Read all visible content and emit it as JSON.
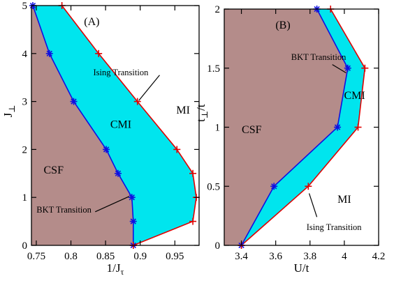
{
  "colors": {
    "superfluid_fill": "#b48c8a",
    "cmi_fill": "#00e5ee",
    "bkt_line": "#1010e0",
    "ising_line": "#e00000",
    "axes": "#000000"
  },
  "chart_data": [
    {
      "type": "line",
      "panel_label": "(A)",
      "xlabel": "1/J",
      "xlabel_subscript": "τ",
      "ylabel": "J",
      "ylabel_subscript": "⊥",
      "xlim": [
        0.743,
        0.985
      ],
      "ylim": [
        0,
        5
      ],
      "x_ticks": [
        0.75,
        0.8,
        0.85,
        0.9,
        0.95
      ],
      "x_tick_labels": [
        "0.75",
        "0.8",
        "0.85",
        "0.9",
        "0.95"
      ],
      "y_ticks": [
        0,
        1,
        2,
        3,
        4,
        5
      ],
      "y_tick_labels": [
        "0",
        "1",
        "2",
        "3",
        "4",
        "5"
      ],
      "series": [
        {
          "name": "BKT Transition",
          "marker": "asterisk",
          "color": "#1010e0",
          "points": [
            [
              0.89,
              0.0
            ],
            [
              0.89,
              0.5
            ],
            [
              0.888,
              1.0
            ],
            [
              0.868,
              1.5
            ],
            [
              0.851,
              2.0
            ],
            [
              0.804,
              3.0
            ],
            [
              0.769,
              4.0
            ],
            [
              0.745,
              5.0
            ]
          ]
        },
        {
          "name": "Ising Transition",
          "marker": "plus",
          "color": "#e00000",
          "points": [
            [
              0.89,
              0.0
            ],
            [
              0.976,
              0.5
            ],
            [
              0.981,
              1.0
            ],
            [
              0.976,
              1.5
            ],
            [
              0.953,
              2.0
            ],
            [
              0.896,
              3.0
            ],
            [
              0.84,
              4.0
            ],
            [
              0.787,
              5.0
            ]
          ]
        }
      ],
      "regions": [
        {
          "label": "CSF",
          "at": [
            0.775,
            1.5
          ]
        },
        {
          "label": "CMI",
          "at": [
            0.872,
            2.45
          ]
        },
        {
          "label": "MI",
          "at": [
            0.962,
            2.75
          ]
        }
      ],
      "annotations": [
        {
          "text": "Ising Transition",
          "text_at": [
            0.872,
            3.55
          ],
          "arrow_from": [
            0.928,
            3.55
          ],
          "arrow_to": [
            0.898,
            3.02
          ]
        },
        {
          "text": "BKT Transition",
          "text_at": [
            0.79,
            0.68
          ],
          "arrow_from": [
            0.835,
            0.7
          ],
          "arrow_to": [
            0.884,
            1.02
          ]
        }
      ]
    },
    {
      "type": "line",
      "panel_label": "(B)",
      "xlabel": "U/t",
      "ylabel": "t",
      "ylabel_subscript": "⊥",
      "ylabel_suffix": "/t",
      "xlim": [
        3.3,
        4.2
      ],
      "ylim": [
        0,
        2
      ],
      "x_ticks": [
        3.4,
        3.6,
        3.8,
        4.0,
        4.2
      ],
      "x_tick_labels": [
        "3.4",
        "3.6",
        "3.8",
        "4",
        "4.2"
      ],
      "y_ticks": [
        0,
        0.5,
        1,
        1.5,
        2
      ],
      "y_tick_labels": [
        "0",
        "0.5",
        "1",
        "1.5",
        "2"
      ],
      "series": [
        {
          "name": "BKT Transition",
          "marker": "asterisk",
          "color": "#1010e0",
          "points": [
            [
              3.4,
              0.0
            ],
            [
              3.59,
              0.5
            ],
            [
              3.96,
              1.0
            ],
            [
              4.02,
              1.5
            ],
            [
              3.84,
              2.0
            ]
          ]
        },
        {
          "name": "Ising Transition",
          "marker": "plus",
          "color": "#e00000",
          "points": [
            [
              3.4,
              0.0
            ],
            [
              3.79,
              0.5
            ],
            [
              4.08,
              1.0
            ],
            [
              4.12,
              1.5
            ],
            [
              3.92,
              2.0
            ]
          ]
        }
      ],
      "regions": [
        {
          "label": "CSF",
          "at": [
            3.46,
            0.95
          ]
        },
        {
          "label": "CMI",
          "at": [
            4.06,
            1.24
          ]
        },
        {
          "label": "MI",
          "at": [
            4.0,
            0.36
          ]
        }
      ],
      "annotations": [
        {
          "text": "BKT Transition",
          "text_at": [
            3.85,
            1.57
          ],
          "arrow_from": [
            3.93,
            1.53
          ],
          "arrow_to": [
            4.01,
            1.46
          ]
        },
        {
          "text": "Ising Transition",
          "text_at": [
            3.94,
            0.13
          ],
          "arrow_from": [
            3.84,
            0.24
          ],
          "arrow_to": [
            3.795,
            0.44
          ]
        }
      ]
    }
  ]
}
